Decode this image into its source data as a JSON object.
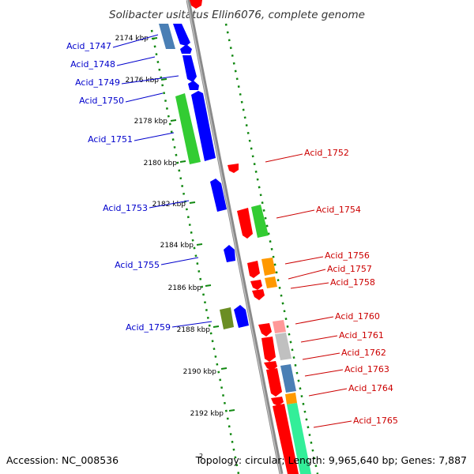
{
  "header": {
    "title": "Solibacter usitatus Ellin6076, complete genome"
  },
  "footer": {
    "accession": "Accession: NC_008536",
    "marker": "2",
    "summary": "Topology: circular; Length: 9,965,640 bp; Genes: 7,887"
  },
  "colors": {
    "forward_label": "#0000cc",
    "reverse_label": "#cc0000",
    "backbone": "#8a8a8a",
    "tick": "#118811"
  },
  "ticks": [
    "2174 kbp",
    "2176 kbp",
    "2178 kbp",
    "2180 kbp",
    "2182 kbp",
    "2184 kbp",
    "2186 kbp",
    "2188 kbp",
    "2190 kbp",
    "2192 kbp"
  ],
  "labels_left": [
    "Acid_1747",
    "Acid_1748",
    "Acid_1749",
    "Acid_1750",
    "Acid_1751",
    "Acid_1753",
    "Acid_1755",
    "Acid_1759"
  ],
  "labels_right": [
    "Acid_1752",
    "Acid_1754",
    "Acid_1756",
    "Acid_1757",
    "Acid_1758",
    "Acid_1760",
    "Acid_1761",
    "Acid_1762",
    "Acid_1763",
    "Acid_1764",
    "Acid_1765"
  ]
}
